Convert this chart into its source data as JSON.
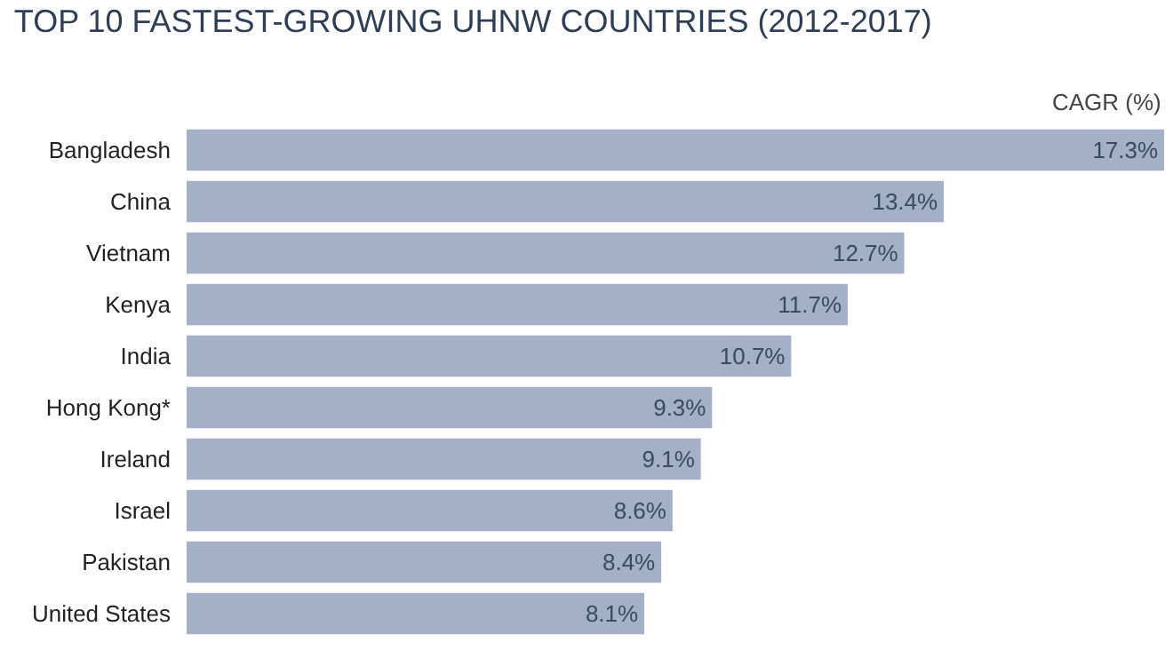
{
  "chart_data": {
    "type": "bar",
    "orientation": "horizontal",
    "title": "TOP 10 FASTEST-GROWING UHNW COUNTRIES (2012-2017)",
    "xlabel": "CAGR (%)",
    "categories": [
      "Bangladesh",
      "China",
      "Vietnam",
      "Kenya",
      "India",
      "Hong Kong*",
      "Ireland",
      "Israel",
      "Pakistan",
      "United States"
    ],
    "values": [
      17.3,
      13.4,
      12.7,
      11.7,
      10.7,
      9.3,
      9.1,
      8.6,
      8.4,
      8.1
    ],
    "value_labels": [
      "17.3%",
      "13.4%",
      "12.7%",
      "11.7%",
      "10.7%",
      "9.3%",
      "9.1%",
      "8.6%",
      "8.4%",
      "8.1%"
    ],
    "color": "#a3b0c8",
    "xlim": [
      0,
      17.3
    ],
    "grid": false,
    "legend": false
  }
}
